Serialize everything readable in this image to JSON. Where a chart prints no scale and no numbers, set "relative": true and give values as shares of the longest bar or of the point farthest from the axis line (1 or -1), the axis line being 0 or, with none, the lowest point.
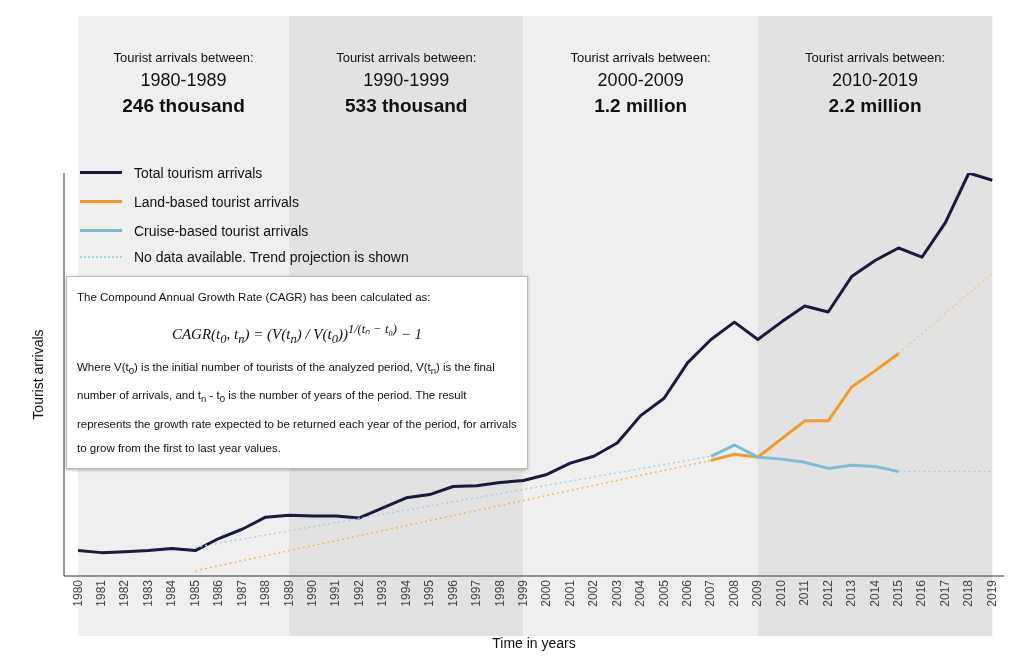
{
  "chart_data": {
    "type": "line",
    "relative": true,
    "xlabel": "Time in years",
    "ylabel": "Tourist arrivals",
    "legend": "top left",
    "marker": "none",
    "categories": [
      "1980",
      "1981",
      "1982",
      "1983",
      "1984",
      "1985",
      "1986",
      "1987",
      "1988",
      "1989",
      "1990",
      "1991",
      "1992",
      "1993",
      "1994",
      "1995",
      "1996",
      "1997",
      "1998",
      "1999",
      "2000",
      "2001",
      "2002",
      "2003",
      "2004",
      "2005",
      "2006",
      "2007",
      "2008",
      "2009",
      "2010",
      "2011",
      "2012",
      "2013",
      "2014",
      "2015",
      "2016",
      "2017",
      "2018",
      "2019"
    ],
    "series": [
      {
        "name": "Total tourism arrivals",
        "color": "#1b1a3d",
        "values": [
          0.063,
          0.058,
          0.06,
          0.063,
          0.068,
          0.063,
          0.093,
          0.116,
          0.146,
          0.151,
          0.149,
          0.149,
          0.144,
          0.169,
          0.194,
          0.202,
          0.222,
          0.224,
          0.232,
          0.237,
          0.252,
          0.28,
          0.297,
          0.33,
          0.398,
          0.441,
          0.529,
          0.587,
          0.63,
          0.587,
          0.63,
          0.67,
          0.655,
          0.743,
          0.783,
          0.814,
          0.791,
          0.877,
          1,
          0.982
        ]
      },
      {
        "name": "Land-based tourist arrivals",
        "color": "#f39a2b",
        "values": [
          null,
          null,
          null,
          null,
          null,
          null,
          null,
          null,
          null,
          null,
          null,
          null,
          null,
          null,
          null,
          null,
          null,
          null,
          null,
          null,
          null,
          null,
          null,
          null,
          null,
          null,
          null,
          0.287,
          0.302,
          0.295,
          0.34,
          0.385,
          0.385,
          0.469,
          0.509,
          0.552,
          null,
          null,
          null,
          null
        ]
      },
      {
        "name": "Cruise-based tourist arrivals",
        "color": "#7dbcd6",
        "values": [
          null,
          null,
          null,
          null,
          null,
          null,
          null,
          null,
          null,
          null,
          null,
          null,
          null,
          null,
          null,
          null,
          null,
          null,
          null,
          null,
          null,
          null,
          null,
          null,
          null,
          null,
          null,
          0.297,
          0.325,
          0.295,
          0.29,
          0.282,
          0.267,
          0.275,
          0.272,
          0.259,
          null,
          null,
          null,
          null
        ]
      },
      {
        "color": "#f5b461",
        "line_style": "dotted",
        "values": [
          null,
          null,
          null,
          null,
          null,
          0.013,
          null,
          null,
          null,
          null,
          null,
          null,
          null,
          null,
          null,
          null,
          null,
          null,
          null,
          null,
          null,
          null,
          null,
          null,
          null,
          null,
          null,
          0.287,
          null,
          null,
          null,
          null,
          null,
          null,
          null,
          null,
          null,
          null,
          null,
          null
        ]
      },
      {
        "color": "#f5c58a",
        "line_style": "dotted",
        "values": [
          null,
          null,
          null,
          null,
          null,
          null,
          null,
          null,
          null,
          null,
          null,
          null,
          null,
          null,
          null,
          null,
          null,
          null,
          null,
          null,
          null,
          null,
          null,
          null,
          null,
          null,
          null,
          null,
          null,
          null,
          null,
          null,
          null,
          null,
          null,
          0.552,
          null,
          null,
          null,
          0.751
        ]
      },
      {
        "color": "#a9cfe0",
        "line_style": "dotted",
        "values": [
          null,
          null,
          null,
          null,
          null,
          0.071,
          null,
          null,
          null,
          null,
          null,
          null,
          null,
          null,
          null,
          null,
          null,
          null,
          null,
          null,
          null,
          null,
          null,
          null,
          null,
          null,
          null,
          0.297,
          null,
          null,
          null,
          null,
          null,
          null,
          null,
          null,
          null,
          null,
          null,
          null
        ]
      },
      {
        "color": "#a9cfe0",
        "line_style": "dotted",
        "values": [
          null,
          null,
          null,
          null,
          null,
          null,
          null,
          null,
          null,
          null,
          null,
          null,
          null,
          null,
          null,
          null,
          null,
          null,
          null,
          null,
          null,
          null,
          null,
          null,
          null,
          null,
          null,
          null,
          null,
          null,
          null,
          null,
          null,
          null,
          null,
          0.259,
          null,
          null,
          null,
          0.259
        ]
      }
    ],
    "bands": [
      {
        "axis": "x",
        "from": "1980",
        "to": "1989",
        "color": "#efefef",
        "label": "Tourist arrivals between:\n1980-1989\n246 thousand"
      },
      {
        "axis": "x",
        "from": "1989",
        "to": "1999",
        "color": "#e2e2e2",
        "label": "Tourist arrivals between:\n1990-1999\n533 thousand"
      },
      {
        "axis": "x",
        "from": "1999",
        "to": "2009",
        "color": "#efefef",
        "label": "Tourist arrivals between:\n2000-2009\n1.2 million"
      },
      {
        "axis": "x",
        "from": "2009",
        "to": "2019",
        "color": "#e2e2e2",
        "label": "Tourist arrivals between:\n2010-2019\n2.2 million"
      }
    ],
    "annotations": [
      "No data available. Trend projection is shown",
      "The Compound Annual Growth Rate (CAGR) has been calculated as:",
      "CAGR(t$_{0}$, t$_{n}$) = (V(t$_{n}$) / V(t$_{0}$))$^{1/(tₙ − t₀)}$ − 1",
      "Where V(t$_{0}$) is the initial number of tourists of the analyzed period, V(t$_{n}$) is the final number of arrivals, and t$_{n}$ - t$_{0}$ is the number of years of the period. The result represents the growth rate expected to be returned each year of the period, for arrivals to grow from the first to last year values."
    ]
  }
}
